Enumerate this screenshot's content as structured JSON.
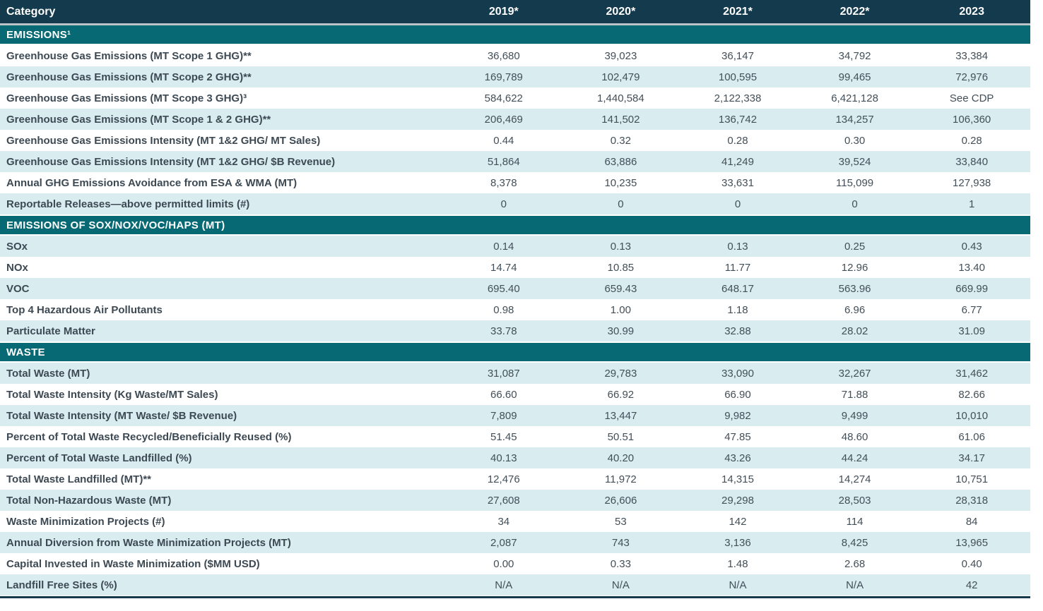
{
  "colors": {
    "header_bg": "#143a4e",
    "section_bg": "#076974",
    "row_shaded_bg": "#d9edf1",
    "header_divider": "#bdc4c8",
    "rule": "#17394d",
    "text_label": "#3d4953",
    "text_value": "#434f58"
  },
  "chart_data": {
    "type": "table",
    "columns": [
      "Category",
      "2019*",
      "2020*",
      "2021*",
      "2022*",
      "2023"
    ],
    "sections": [
      {
        "title": "EMISSIONS¹",
        "start_shaded": false,
        "rows": [
          {
            "label": "Greenhouse Gas Emissions (MT Scope 1 GHG)**",
            "values": [
              "36,680",
              "39,023",
              "36,147",
              "34,792",
              "33,384"
            ]
          },
          {
            "label": "Greenhouse Gas Emissions (MT Scope 2 GHG)**",
            "values": [
              "169,789",
              "102,479",
              "100,595",
              "99,465",
              "72,976"
            ]
          },
          {
            "label": "Greenhouse Gas Emissions (MT Scope 3 GHG)³",
            "values": [
              "584,622",
              "1,440,584",
              "2,122,338",
              "6,421,128",
              "See CDP"
            ]
          },
          {
            "label": "Greenhouse Gas Emissions (MT Scope 1 & 2 GHG)**",
            "values": [
              "206,469",
              "141,502",
              "136,742",
              "134,257",
              "106,360"
            ]
          },
          {
            "label": "Greenhouse Gas Emissions Intensity (MT 1&2 GHG/ MT Sales)",
            "values": [
              "0.44",
              "0.32",
              "0.28",
              "0.30",
              "0.28"
            ]
          },
          {
            "label": "Greenhouse Gas Emissions Intensity (MT 1&2 GHG/ $B Revenue)",
            "values": [
              "51,864",
              "63,886",
              "41,249",
              "39,524",
              "33,840"
            ]
          },
          {
            "label": "Annual GHG Emissions Avoidance from ESA & WMA (MT)",
            "values": [
              "8,378",
              "10,235",
              "33,631",
              "115,099",
              "127,938"
            ]
          },
          {
            "label": "Reportable Releases—above permitted limits (#)",
            "values": [
              "0",
              "0",
              "0",
              "0",
              "1"
            ]
          }
        ]
      },
      {
        "title": "EMISSIONS OF SOX/NOX/VOC/HAPS (MT)",
        "start_shaded": true,
        "rows": [
          {
            "label": "SOx",
            "values": [
              "0.14",
              "0.13",
              "0.13",
              "0.25",
              "0.43"
            ]
          },
          {
            "label": "NOx",
            "values": [
              "14.74",
              "10.85",
              "11.77",
              "12.96",
              "13.40"
            ]
          },
          {
            "label": "VOC",
            "values": [
              "695.40",
              "659.43",
              "648.17",
              "563.96",
              "669.99"
            ]
          },
          {
            "label": "Top 4 Hazardous Air Pollutants",
            "values": [
              "0.98",
              "1.00",
              "1.18",
              "6.96",
              "6.77"
            ]
          },
          {
            "label": "Particulate Matter",
            "values": [
              "33.78",
              "30.99",
              "32.88",
              "28.02",
              "31.09"
            ]
          }
        ]
      },
      {
        "title": "WASTE",
        "start_shaded": true,
        "rows": [
          {
            "label": "Total Waste (MT)",
            "values": [
              "31,087",
              "29,783",
              "33,090",
              "32,267",
              "31,462"
            ]
          },
          {
            "label": "Total Waste Intensity (Kg Waste/MT Sales)",
            "values": [
              "66.60",
              "66.92",
              "66.90",
              "71.88",
              "82.66"
            ]
          },
          {
            "label": "Total Waste Intensity (MT Waste/ $B Revenue)",
            "values": [
              "7,809",
              "13,447",
              "9,982",
              "9,499",
              "10,010"
            ]
          },
          {
            "label": "Percent of Total Waste Recycled/Beneficially Reused (%)",
            "values": [
              "51.45",
              "50.51",
              "47.85",
              "48.60",
              "61.06"
            ]
          },
          {
            "label": "Percent of Total Waste Landfilled (%)",
            "values": [
              "40.13",
              "40.20",
              "43.26",
              "44.24",
              "34.17"
            ]
          },
          {
            "label": "Total Waste Landfilled (MT)**",
            "values": [
              "12,476",
              "11,972",
              "14,315",
              "14,274",
              "10,751"
            ]
          },
          {
            "label": "Total Non-Hazardous Waste (MT)",
            "values": [
              "27,608",
              "26,606",
              "29,298",
              "28,503",
              "28,318"
            ]
          },
          {
            "label": "Waste Minimization Projects (#)",
            "values": [
              "34",
              "53",
              "142",
              "114",
              "84"
            ]
          },
          {
            "label": "Annual Diversion from Waste Minimization Projects (MT)",
            "values": [
              "2,087",
              "743",
              "3,136",
              "8,425",
              "13,965"
            ]
          },
          {
            "label": "Capital Invested in Waste Minimization ($MM USD)",
            "values": [
              "0.00",
              "0.33",
              "1.48",
              "2.68",
              "0.40"
            ]
          },
          {
            "label": "Landfill Free Sites (%)",
            "values": [
              "N/A",
              "N/A",
              "N/A",
              "N/A",
              "42"
            ]
          }
        ]
      }
    ]
  }
}
